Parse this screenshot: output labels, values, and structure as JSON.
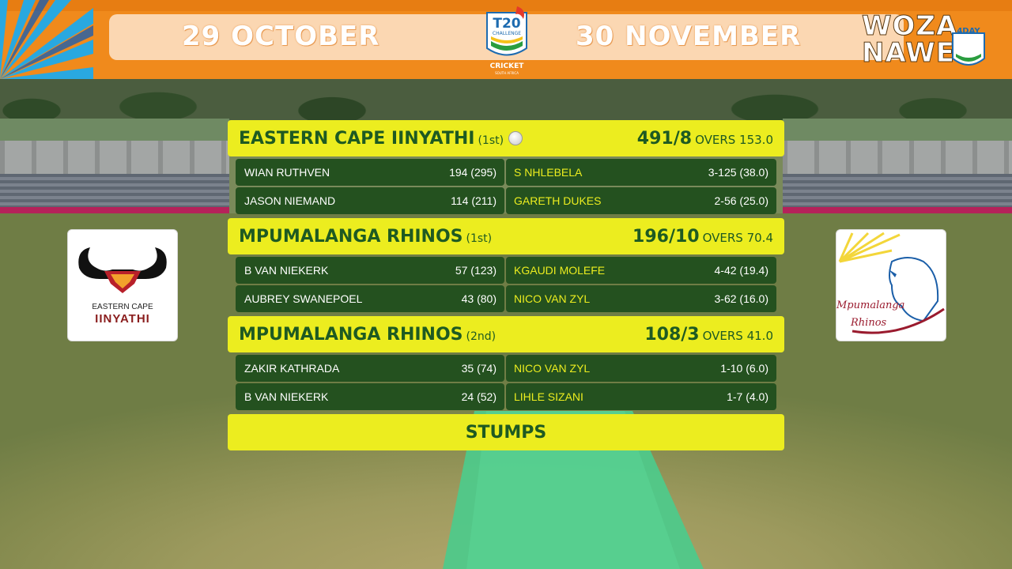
{
  "banner": {
    "start_date": "29 OCTOBER",
    "end_date": "30 NOVEMBER",
    "center_logo": {
      "line1": "T20",
      "line2": "CHALLENGE",
      "line3": "CRICKET",
      "line4": "SOUTH AFRICA"
    },
    "right_logo": {
      "line1": "WOZA",
      "line2": "NAWE",
      "badge": "4DAY"
    }
  },
  "teams": {
    "left": {
      "line1": "EASTERN CAPE",
      "line2": "IINYATHI"
    },
    "right": {
      "line1": "Mpumalanga",
      "line2": "Rhinos"
    }
  },
  "innings": [
    {
      "team": "EASTERN CAPE IINYATHI",
      "label": "(1st)",
      "score": "491/8",
      "overs": "OVERS 153.0",
      "batting_current": true,
      "rows": [
        {
          "batter": "WIAN RUTHVEN",
          "bat_figures": "194 (295)",
          "bowler": "S NHLEBELA",
          "bowl_figures": "3-125 (38.0)"
        },
        {
          "batter": "JASON NIEMAND",
          "bat_figures": "114 (211)",
          "bowler": "GARETH DUKES",
          "bowl_figures": "2-56 (25.0)"
        }
      ]
    },
    {
      "team": "MPUMALANGA RHINOS",
      "label": "(1st)",
      "score": "196/10",
      "overs": "OVERS 70.4",
      "rows": [
        {
          "batter": "B VAN NIEKERK",
          "bat_figures": "57 (123)",
          "bowler": "KGAUDI MOLEFE",
          "bowl_figures": "4-42 (19.4)"
        },
        {
          "batter": "AUBREY SWANEPOEL",
          "bat_figures": "43 (80)",
          "bowler": "NICO VAN ZYL",
          "bowl_figures": "3-62 (16.0)"
        }
      ]
    },
    {
      "team": "MPUMALANGA RHINOS",
      "label": "(2nd)",
      "score": "108/3",
      "overs": "OVERS 41.0",
      "rows": [
        {
          "batter": "ZAKIR KATHRADA",
          "bat_figures": "35 (74)",
          "bowler": "NICO VAN ZYL",
          "bowl_figures": "1-10 (6.0)"
        },
        {
          "batter": "B VAN NIEKERK",
          "bat_figures": "24 (52)",
          "bowler": "LIHLE SIZANI",
          "bowl_figures": "1-7 (4.0)"
        }
      ]
    }
  ],
  "status": "STUMPS",
  "colors": {
    "banner_orange": "#f08a1c",
    "bar_yellow": "#eced1f",
    "row_green": "#24511f",
    "text_green": "#1e5a22"
  },
  "icons": [
    "cricket-ball-icon",
    "buffalo-logo-icon",
    "rhino-logo-icon",
    "sun-rays-icon"
  ]
}
